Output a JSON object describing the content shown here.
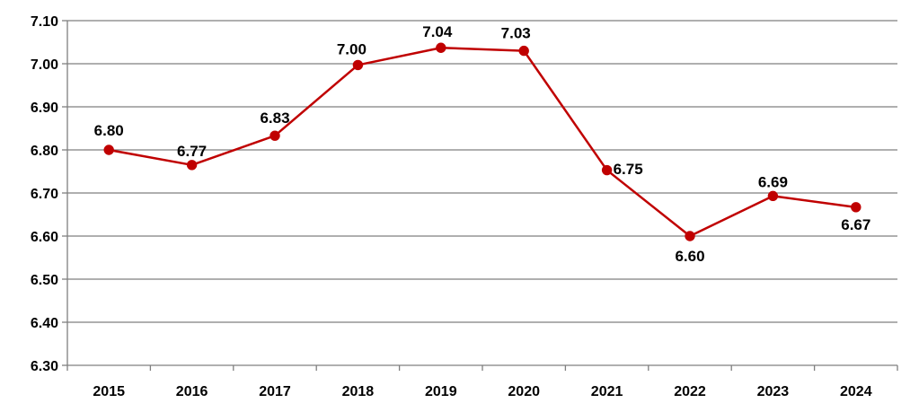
{
  "chart_data": {
    "type": "line",
    "title": "",
    "xlabel": "",
    "ylabel": "",
    "categories": [
      "2015",
      "2016",
      "2017",
      "2018",
      "2019",
      "2020",
      "2021",
      "2022",
      "2023",
      "2024"
    ],
    "series": [
      {
        "values": [
          6.8,
          6.765,
          6.833,
          6.997,
          7.037,
          7.03,
          6.753,
          6.6,
          6.693,
          6.667
        ],
        "data_labels": [
          "6.80",
          "6.77",
          "6.83",
          "7.00",
          "7.04",
          "7.03",
          "6.75",
          "6.60",
          "6.69",
          "6.67"
        ],
        "color": "#C00000"
      }
    ],
    "ylim": [
      6.3,
      7.1
    ],
    "yticks": [
      "6.30",
      "6.40",
      "6.50",
      "6.60",
      "6.70",
      "6.80",
      "6.90",
      "7.00",
      "7.10"
    ],
    "grid": true,
    "legend": "none"
  }
}
